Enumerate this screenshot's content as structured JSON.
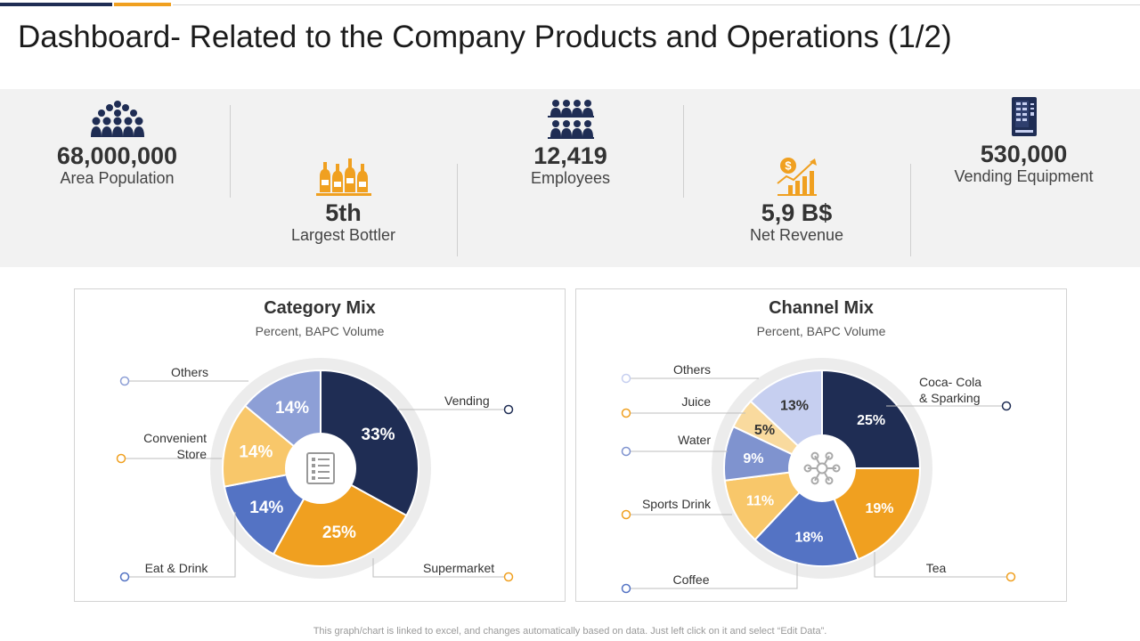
{
  "title": "Dashboard- Related to the Company Products and Operations (1/2)",
  "kpis": [
    {
      "value": "68,000,000",
      "label": "Area Population",
      "icon": "crowd-icon"
    },
    {
      "value": "5th",
      "label": "Largest Bottler",
      "icon": "bottles-icon"
    },
    {
      "value": "12,419",
      "label": "Employees",
      "icon": "employees-icon"
    },
    {
      "value": "5,9 B$",
      "label": "Net Revenue",
      "icon": "revenue-growth-icon"
    },
    {
      "value": "530,000",
      "label": "Vending Equipment",
      "icon": "vending-machine-icon"
    }
  ],
  "colors": {
    "navy": "#1f2d54",
    "orange": "#f0a020",
    "light_orange": "#f8c76a",
    "blue": "#5473c4",
    "lavender": "#8d9fd6",
    "pale_lavender": "#c6cff0",
    "pale_orange": "#f9da9e",
    "mid_blue": "#7f93cf"
  },
  "chart_data": [
    {
      "type": "pie",
      "title": "Category Mix",
      "subtitle": "Percent, BAPC Volume",
      "center_icon": "checklist-icon",
      "categories": [
        "Vending",
        "Supermarket",
        "Eat & Drink",
        "Convenient Store",
        "Others"
      ],
      "values": [
        33,
        25,
        14,
        14,
        14
      ],
      "labels": [
        "33%",
        "25%",
        "14%",
        "14%",
        "14%"
      ],
      "colors": [
        "#1f2d54",
        "#f0a020",
        "#5473c4",
        "#f8c76a",
        "#8d9fd6"
      ]
    },
    {
      "type": "pie",
      "title": "Channel Mix",
      "subtitle": "Percent, BAPC Volume",
      "center_icon": "network-hub-icon",
      "categories": [
        "Coca- Cola & Sparking",
        "Tea",
        "Coffee",
        "Sports Drink",
        "Water",
        "Juice",
        "Others"
      ],
      "values": [
        25,
        19,
        18,
        11,
        9,
        5,
        13
      ],
      "labels": [
        "25%",
        "19%",
        "18%",
        "11%",
        "9%",
        "5%",
        "13%"
      ],
      "colors": [
        "#1f2d54",
        "#f0a020",
        "#5473c4",
        "#f8c76a",
        "#7f93cf",
        "#f9da9e",
        "#c6cff0"
      ]
    }
  ],
  "footer": "This graph/chart is linked to excel, and changes automatically based on data. Just left click on it and select “Edit Data”."
}
